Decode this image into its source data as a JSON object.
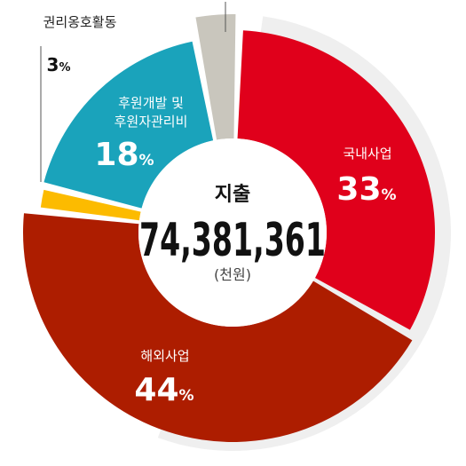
{
  "chart_data": {
    "type": "pie",
    "variant": "donut",
    "title": "지출",
    "total": "74,381,361",
    "unit": "(천원)",
    "slices": [
      {
        "name": "국내사업",
        "value": 33,
        "display": "33",
        "color": "#e0001b"
      },
      {
        "name": "해외사업",
        "value": 44,
        "display": "44",
        "color": "#ad1d00"
      },
      {
        "name": "",
        "value": 1.5,
        "display": "",
        "color": "#fcbb00"
      },
      {
        "name": "후원개발 및 후원자관리비",
        "value": 18,
        "display": "18",
        "color": "#1aa3bb"
      },
      {
        "name": "권리옹호활동",
        "value": 3,
        "display": "3",
        "color": "#c9c6bd"
      }
    ],
    "percent_sign": "%",
    "legend_placement": "none",
    "background_color": "#efefef"
  }
}
